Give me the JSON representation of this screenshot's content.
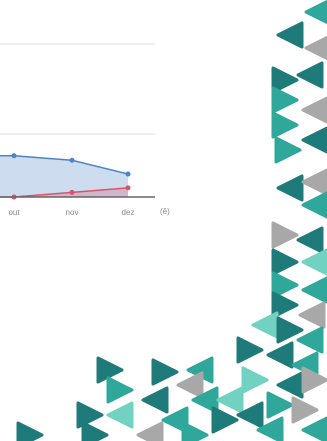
{
  "chart_data": {
    "type": "area",
    "categories": [
      "out",
      "nov",
      "dez"
    ],
    "unit_label": "(ê)",
    "ylim": [
      0,
      100
    ],
    "series": [
      {
        "color": "#4a86c5",
        "values": [
          27,
          24,
          15
        ]
      },
      {
        "color": "#d9536b",
        "values": [
          0,
          3,
          6
        ]
      }
    ]
  }
}
